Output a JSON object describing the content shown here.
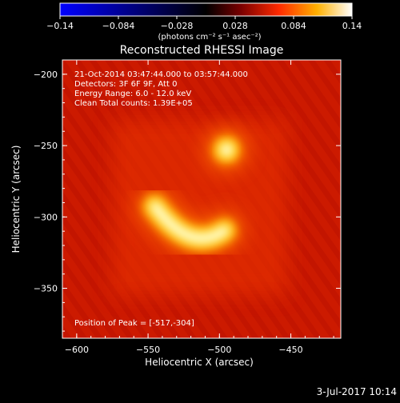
{
  "chart_data": {
    "type": "heatmap",
    "title": "Reconstructed RHESSI Image",
    "xlabel": "Heliocentric X (arcsec)",
    "ylabel": "Heliocentric Y (arcsec)",
    "xlim": [
      -610,
      -415
    ],
    "ylim": [
      -385,
      -190
    ],
    "x_ticks": [
      {
        "value": -600,
        "label": "−600"
      },
      {
        "value": -550,
        "label": "−550"
      },
      {
        "value": -500,
        "label": "−500"
      },
      {
        "value": -450,
        "label": "−450"
      }
    ],
    "y_ticks": [
      {
        "value": -200,
        "label": "−200"
      },
      {
        "value": -250,
        "label": "−250"
      },
      {
        "value": -300,
        "label": "−300"
      },
      {
        "value": -350,
        "label": "−350"
      }
    ],
    "colorbar": {
      "range": [
        -0.14,
        0.14
      ],
      "ticks": [
        {
          "value": -0.14,
          "label": "−0.14"
        },
        {
          "value": -0.084,
          "label": "−0.084"
        },
        {
          "value": -0.028,
          "label": "−0.028"
        },
        {
          "value": 0.028,
          "label": "0.028"
        },
        {
          "value": 0.084,
          "label": "0.084"
        },
        {
          "value": 0.14,
          "label": "0.14"
        }
      ],
      "unit_label": "(photons cm⁻² s⁻¹ asec⁻²)",
      "colors": [
        "#0000ff",
        "#000000",
        "#ff0000",
        "#ffffff"
      ]
    },
    "annotations": [
      "21-Oct-2014 03:47:44.000 to 03:57:44.000",
      "Detectors: 3F 6F 9F, Att 0",
      "Energy Range: 6.0 - 12.0 keV",
      "Clean    Total counts: 1.39E+05"
    ],
    "peak_label": "Position of Peak = [-517,-304]",
    "sources": [
      {
        "x": -495,
        "y": -253,
        "intensity": 0.14
      },
      {
        "x": -520,
        "y": -305,
        "intensity": 0.14
      }
    ],
    "background_level": 0.04
  },
  "footer": {
    "timestamp": "3-Jul-2017 10:14"
  }
}
